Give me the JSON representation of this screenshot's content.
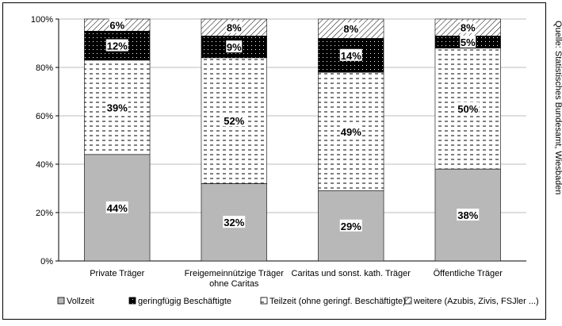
{
  "chart_data": {
    "type": "bar",
    "stacked": true,
    "normalized": true,
    "categories": [
      [
        "Private Träger"
      ],
      [
        "Freigemeinnützige Träger",
        "ohne Caritas"
      ],
      [
        "Caritas und sonst. kath. Träger"
      ],
      [
        "Öffentliche Träger"
      ]
    ],
    "series": [
      {
        "name": "Vollzeit",
        "values": [
          44,
          32,
          29,
          38
        ],
        "labels": [
          "44%",
          "32%",
          "29%",
          "38%"
        ],
        "pattern": "gray"
      },
      {
        "name": "Teilzeit (ohne geringf. Beschäftigte)",
        "values": [
          39,
          52,
          49,
          50
        ],
        "labels": [
          "39%",
          "52%",
          "49%",
          "50%"
        ],
        "pattern": "dash"
      },
      {
        "name": "geringfügig Beschäftigte",
        "values": [
          12,
          9,
          14,
          5
        ],
        "labels": [
          "12%",
          "9%",
          "14%",
          "5%"
        ],
        "pattern": "black"
      },
      {
        "name": "weitere (Azubis, Zivis, FSJler ...)",
        "values": [
          6,
          8,
          8,
          8
        ],
        "labels": [
          "6%",
          "8%",
          "8%",
          "8%"
        ],
        "pattern": "hatch"
      }
    ],
    "legend_order": [
      {
        "name": "Vollzeit",
        "pattern": "gray"
      },
      {
        "name": "geringfügig Beschäftigte",
        "pattern": "black"
      },
      {
        "name": "Teilzeit (ohne geringf. Beschäftigte)",
        "pattern": "dash"
      },
      {
        "name": "weitere (Azubis, Zivis, FSJler ...)",
        "pattern": "hatch"
      }
    ],
    "yticks": [
      "0%",
      "20%",
      "40%",
      "60%",
      "80%",
      "100%"
    ],
    "ylim": [
      0,
      100
    ],
    "grid": true,
    "legend_position": "bottom",
    "colors": {
      "gray": "#b8b8b8",
      "black": "#000000",
      "background": "#ffffff",
      "grid": "#bdbdbd"
    }
  },
  "source_note": "Quelle: Statistisches Bundesamt, Wiesbaden"
}
